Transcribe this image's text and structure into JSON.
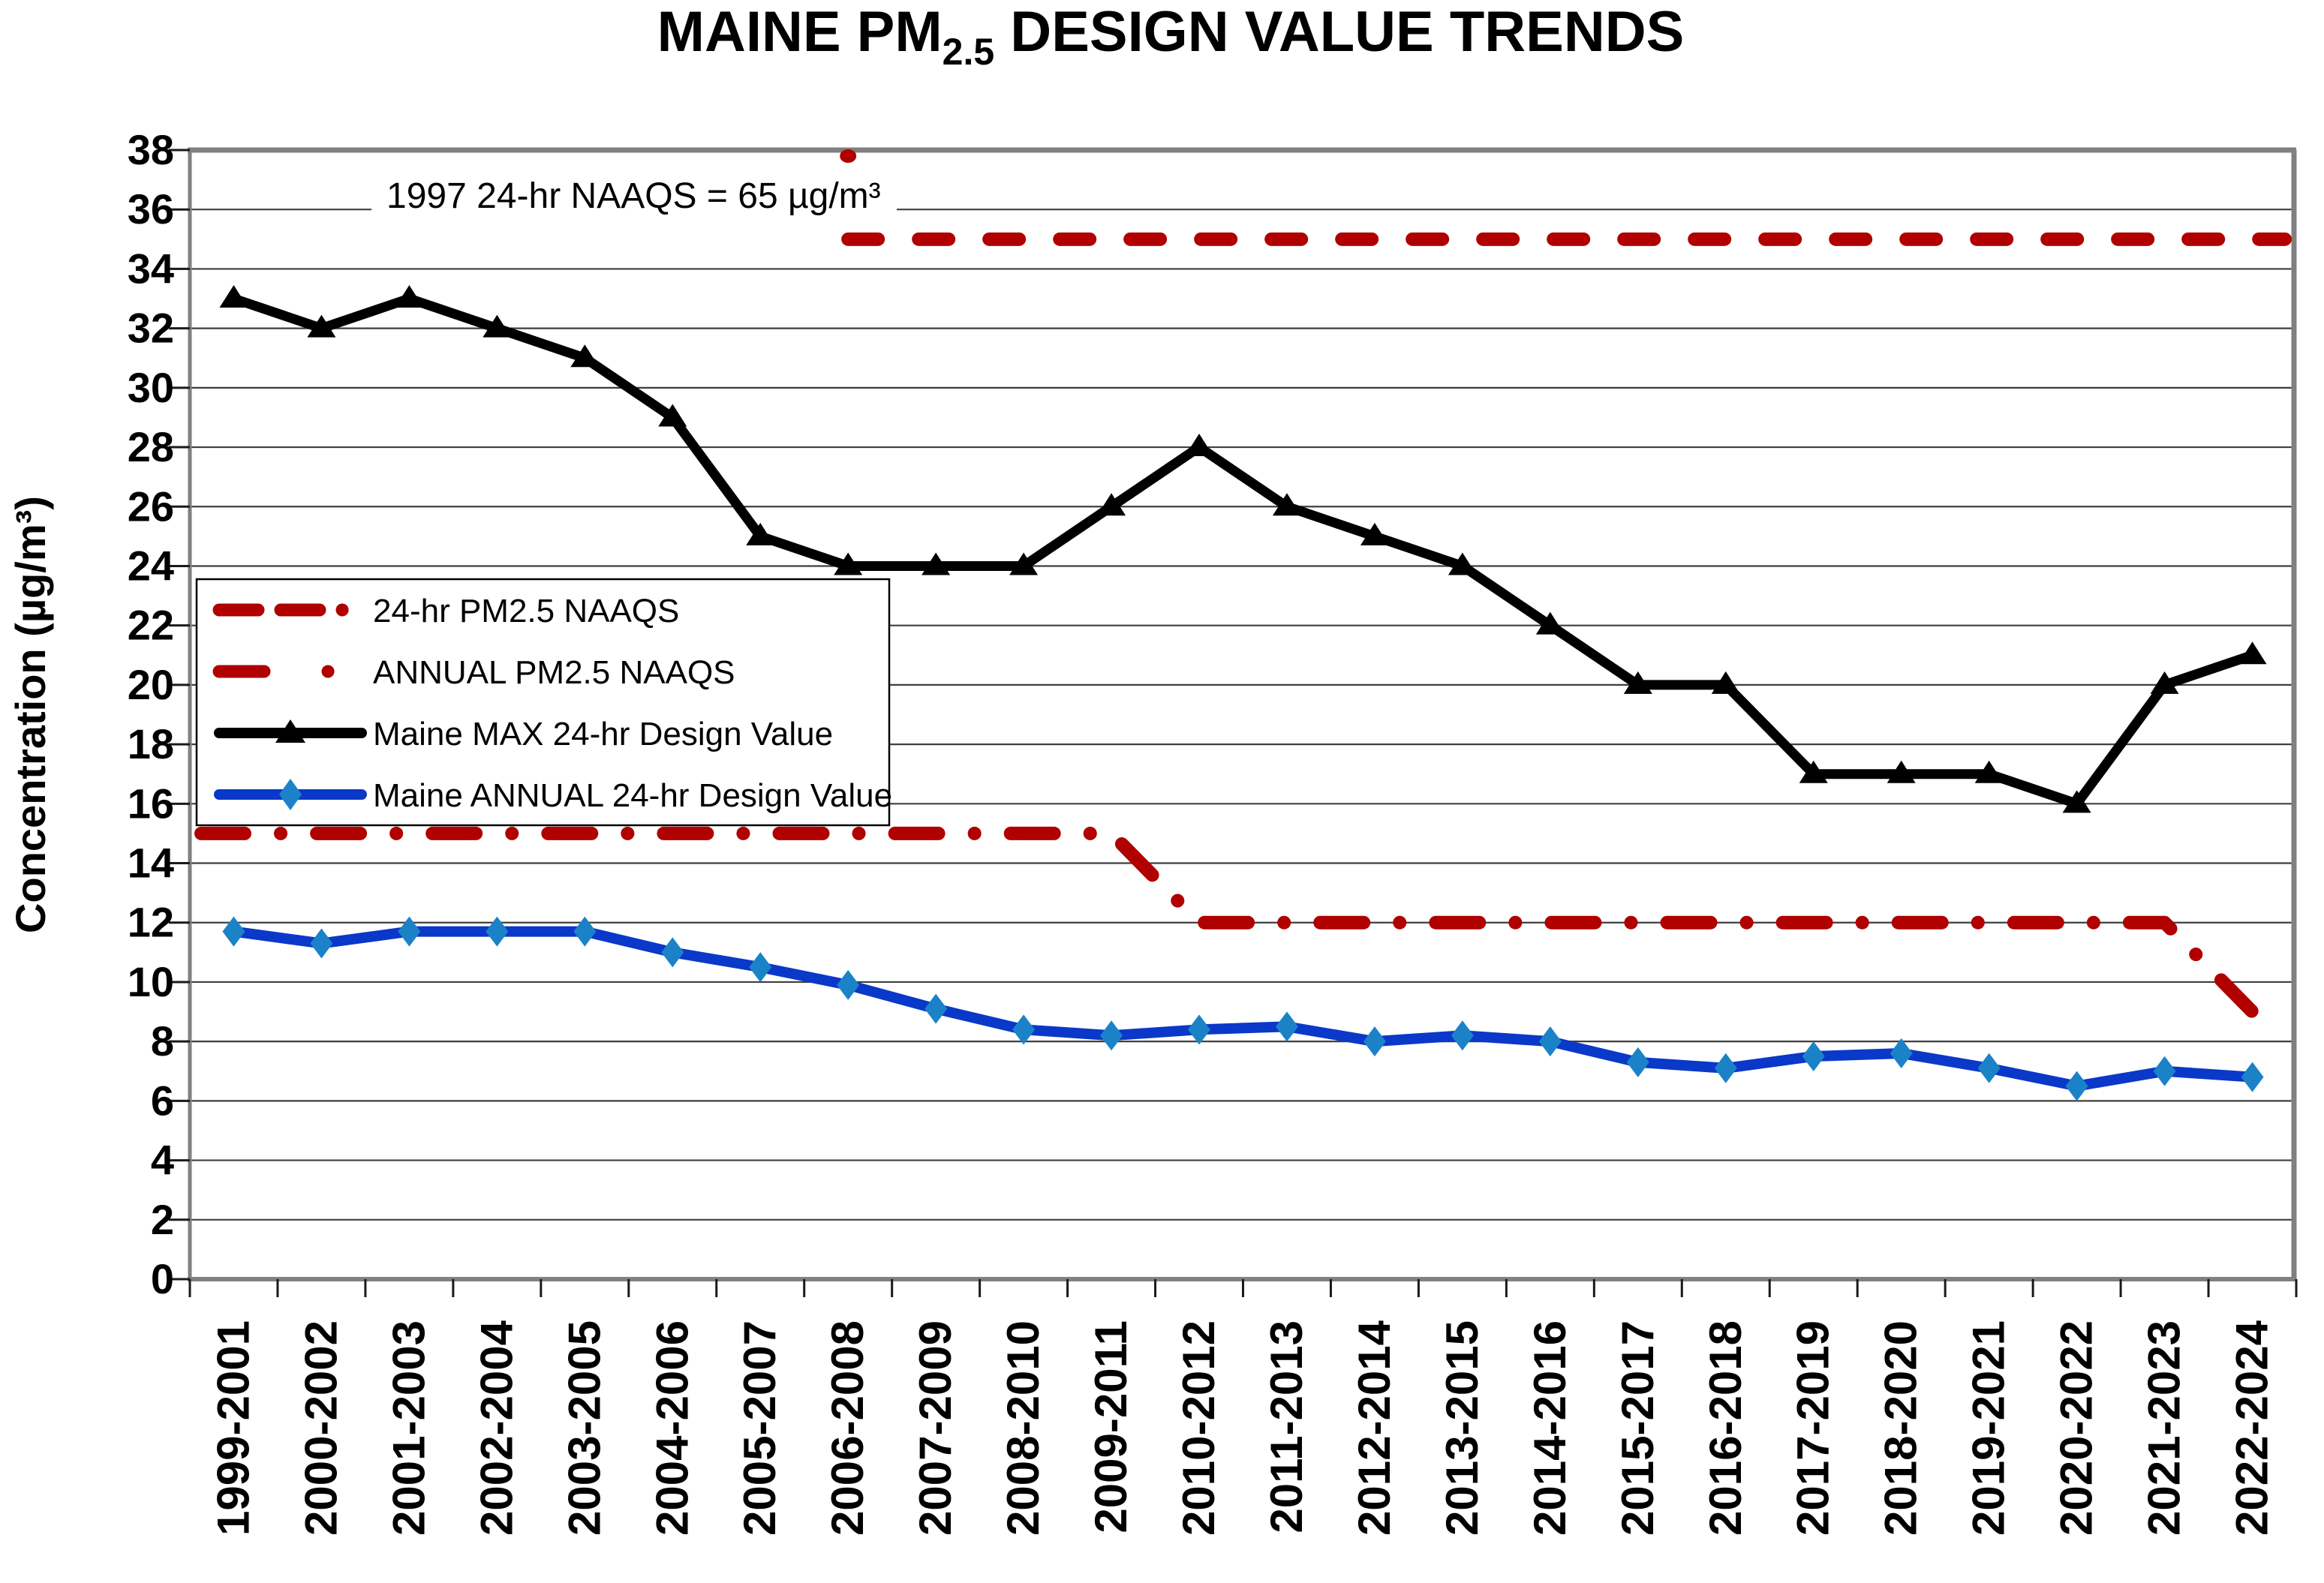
{
  "title": {
    "prefix": "MAINE PM",
    "subscript": "2.5",
    "suffix": " DESIGN VALUE TRENDS"
  },
  "annotation": "1997 24-hr NAAQS = 65 µg/m³",
  "y_axis_title": "Concentration (µg/m³)",
  "colors": {
    "dark_red": "#b00000",
    "blue_line": "#0a38c8",
    "blue_marker": "#1b82c8",
    "black": "#000000",
    "grid": "#3f3f3f",
    "border": "#808080",
    "tick": "#1a1a1a",
    "background": "#ffffff"
  },
  "legend": {
    "items": [
      {
        "label": "24-hr PM2.5 NAAQS",
        "style": "dash",
        "color": "#b00000"
      },
      {
        "label": "ANNUAL PM2.5 NAAQS",
        "style": "dash-dot",
        "color": "#b00000"
      },
      {
        "label": "Maine MAX 24-hr Design Value",
        "style": "solid-triangle",
        "color": "#000000"
      },
      {
        "label": "Maine ANNUAL 24-hr Design Value",
        "style": "solid-diamond",
        "color": "#0a38c8"
      }
    ]
  },
  "chart_data": {
    "type": "line",
    "title": "MAINE PM2.5 DESIGN VALUE TRENDS",
    "xlabel": "",
    "ylabel": "Concentration (µg/m³)",
    "ylim": [
      0,
      38
    ],
    "yticks": [
      0,
      2,
      4,
      6,
      8,
      10,
      12,
      14,
      16,
      18,
      20,
      22,
      24,
      26,
      28,
      30,
      32,
      34,
      36,
      38
    ],
    "grid": true,
    "legend_position": "upper-left-inside",
    "annotation": "1997 24-hr NAAQS = 65 µg/m³",
    "categories": [
      "1999-2001",
      "2000-2002",
      "2001-2003",
      "2002-2004",
      "2003-2005",
      "2004-2006",
      "2005-2007",
      "2006-2008",
      "2007-2009",
      "2008-2010",
      "2009-2011",
      "2010-2012",
      "2011-2013",
      "2012-2014",
      "2013-2015",
      "2014-2016",
      "2015-2017",
      "2016-2018",
      "2017-2019",
      "2018-2020",
      "2019-2021",
      "2020-2022",
      "2021-2023",
      "2022-2024"
    ],
    "series": [
      {
        "name": "Maine MAX 24-hr Design Value",
        "marker": "triangle",
        "color": "#000000",
        "marker_color": "#000000",
        "values": [
          33,
          32,
          33,
          32,
          31,
          29,
          25,
          24,
          24,
          24,
          26,
          28,
          26,
          25,
          24,
          22,
          20,
          20,
          17,
          17,
          17,
          16,
          20,
          21
        ]
      },
      {
        "name": "Maine ANNUAL 24-hr Design Value",
        "marker": "diamond",
        "color": "#0a38c8",
        "marker_color": "#1b82c8",
        "values": [
          11.7,
          11.3,
          11.7,
          11.7,
          11.7,
          11.0,
          10.5,
          9.9,
          9.1,
          8.4,
          8.2,
          8.4,
          8.5,
          8.0,
          8.2,
          8.0,
          7.3,
          7.1,
          7.5,
          7.6,
          7.1,
          6.5,
          7.0,
          6.8
        ]
      }
    ],
    "reference_lines": [
      {
        "name": "24-hr PM2.5 NAAQS",
        "color": "#b00000",
        "style": "dash",
        "note": "1997 standard of 65 is off-scale above plot; line drops to 35 at 2006-2008 and runs to right edge",
        "points": [
          [
            "2006-2008",
            65
          ],
          [
            "2006-2008",
            35
          ],
          [
            "right-edge",
            35
          ]
        ]
      },
      {
        "name": "ANNUAL PM2.5 NAAQS",
        "color": "#b00000",
        "style": "dash-dot",
        "points": [
          [
            "left-edge",
            15
          ],
          [
            "2009-2011",
            15
          ],
          [
            "2010-2012",
            12
          ],
          [
            "2021-2023",
            12
          ],
          [
            "2022-2024",
            9
          ]
        ]
      }
    ]
  }
}
